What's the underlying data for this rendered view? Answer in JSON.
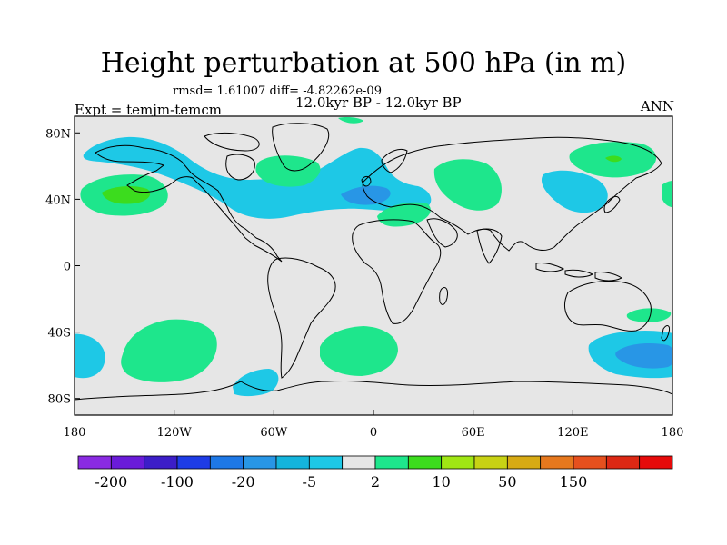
{
  "title": "Height perturbation at 500 hPa (in m)",
  "stats_line": "rmsd= 1.61007 diff= -4.82262e-09",
  "period": "12.0kyr BP - 12.0kyr BP",
  "expt": "Expt = temjm-temcm",
  "season": "ANN",
  "map": {
    "background": "#e6e6e6",
    "lat_labels": [
      "80N",
      "40N",
      "0",
      "40S",
      "80S"
    ],
    "lat_values": [
      80,
      40,
      0,
      -40,
      -80
    ],
    "lon_labels": [
      "180",
      "120W",
      "60W",
      "0",
      "60E",
      "120E",
      "180"
    ],
    "lon_values": [
      -180,
      -120,
      -60,
      0,
      60,
      120,
      180
    ],
    "lat_range": [
      -90,
      90
    ],
    "lon_range": [
      -180,
      180
    ]
  },
  "colorbar": {
    "colors": [
      "#8a2be2",
      "#6a1bd9",
      "#3c1ec8",
      "#1e3ce6",
      "#1e78e6",
      "#2896e6",
      "#14b4dc",
      "#1ec8e6",
      "#e6e6e6",
      "#1ee68c",
      "#3cdc1e",
      "#a0e614",
      "#c8d214",
      "#d7aa14",
      "#e6781e",
      "#e6501e",
      "#dc2814",
      "#e60a0a"
    ],
    "labels": [
      "-200",
      "-100",
      "-20",
      "-5",
      "2",
      "10",
      "50",
      "150"
    ],
    "label_after_box": [
      1,
      3,
      5,
      7,
      9,
      11,
      13,
      15
    ]
  },
  "chart_data": {
    "type": "heatmap",
    "title": "Height perturbation at 500 hPa (in m)",
    "subtitle": "12.0kyr BP - 12.0kyr BP",
    "note": "rmsd= 1.61007 diff= -4.82262e-09",
    "xlabel": "",
    "ylabel": "",
    "xlim": [
      -180,
      180
    ],
    "ylim": [
      -90,
      90
    ],
    "contour_levels": [
      "-200",
      "-100",
      "-20",
      "-5",
      "2",
      "10",
      "50",
      "150"
    ]
  }
}
